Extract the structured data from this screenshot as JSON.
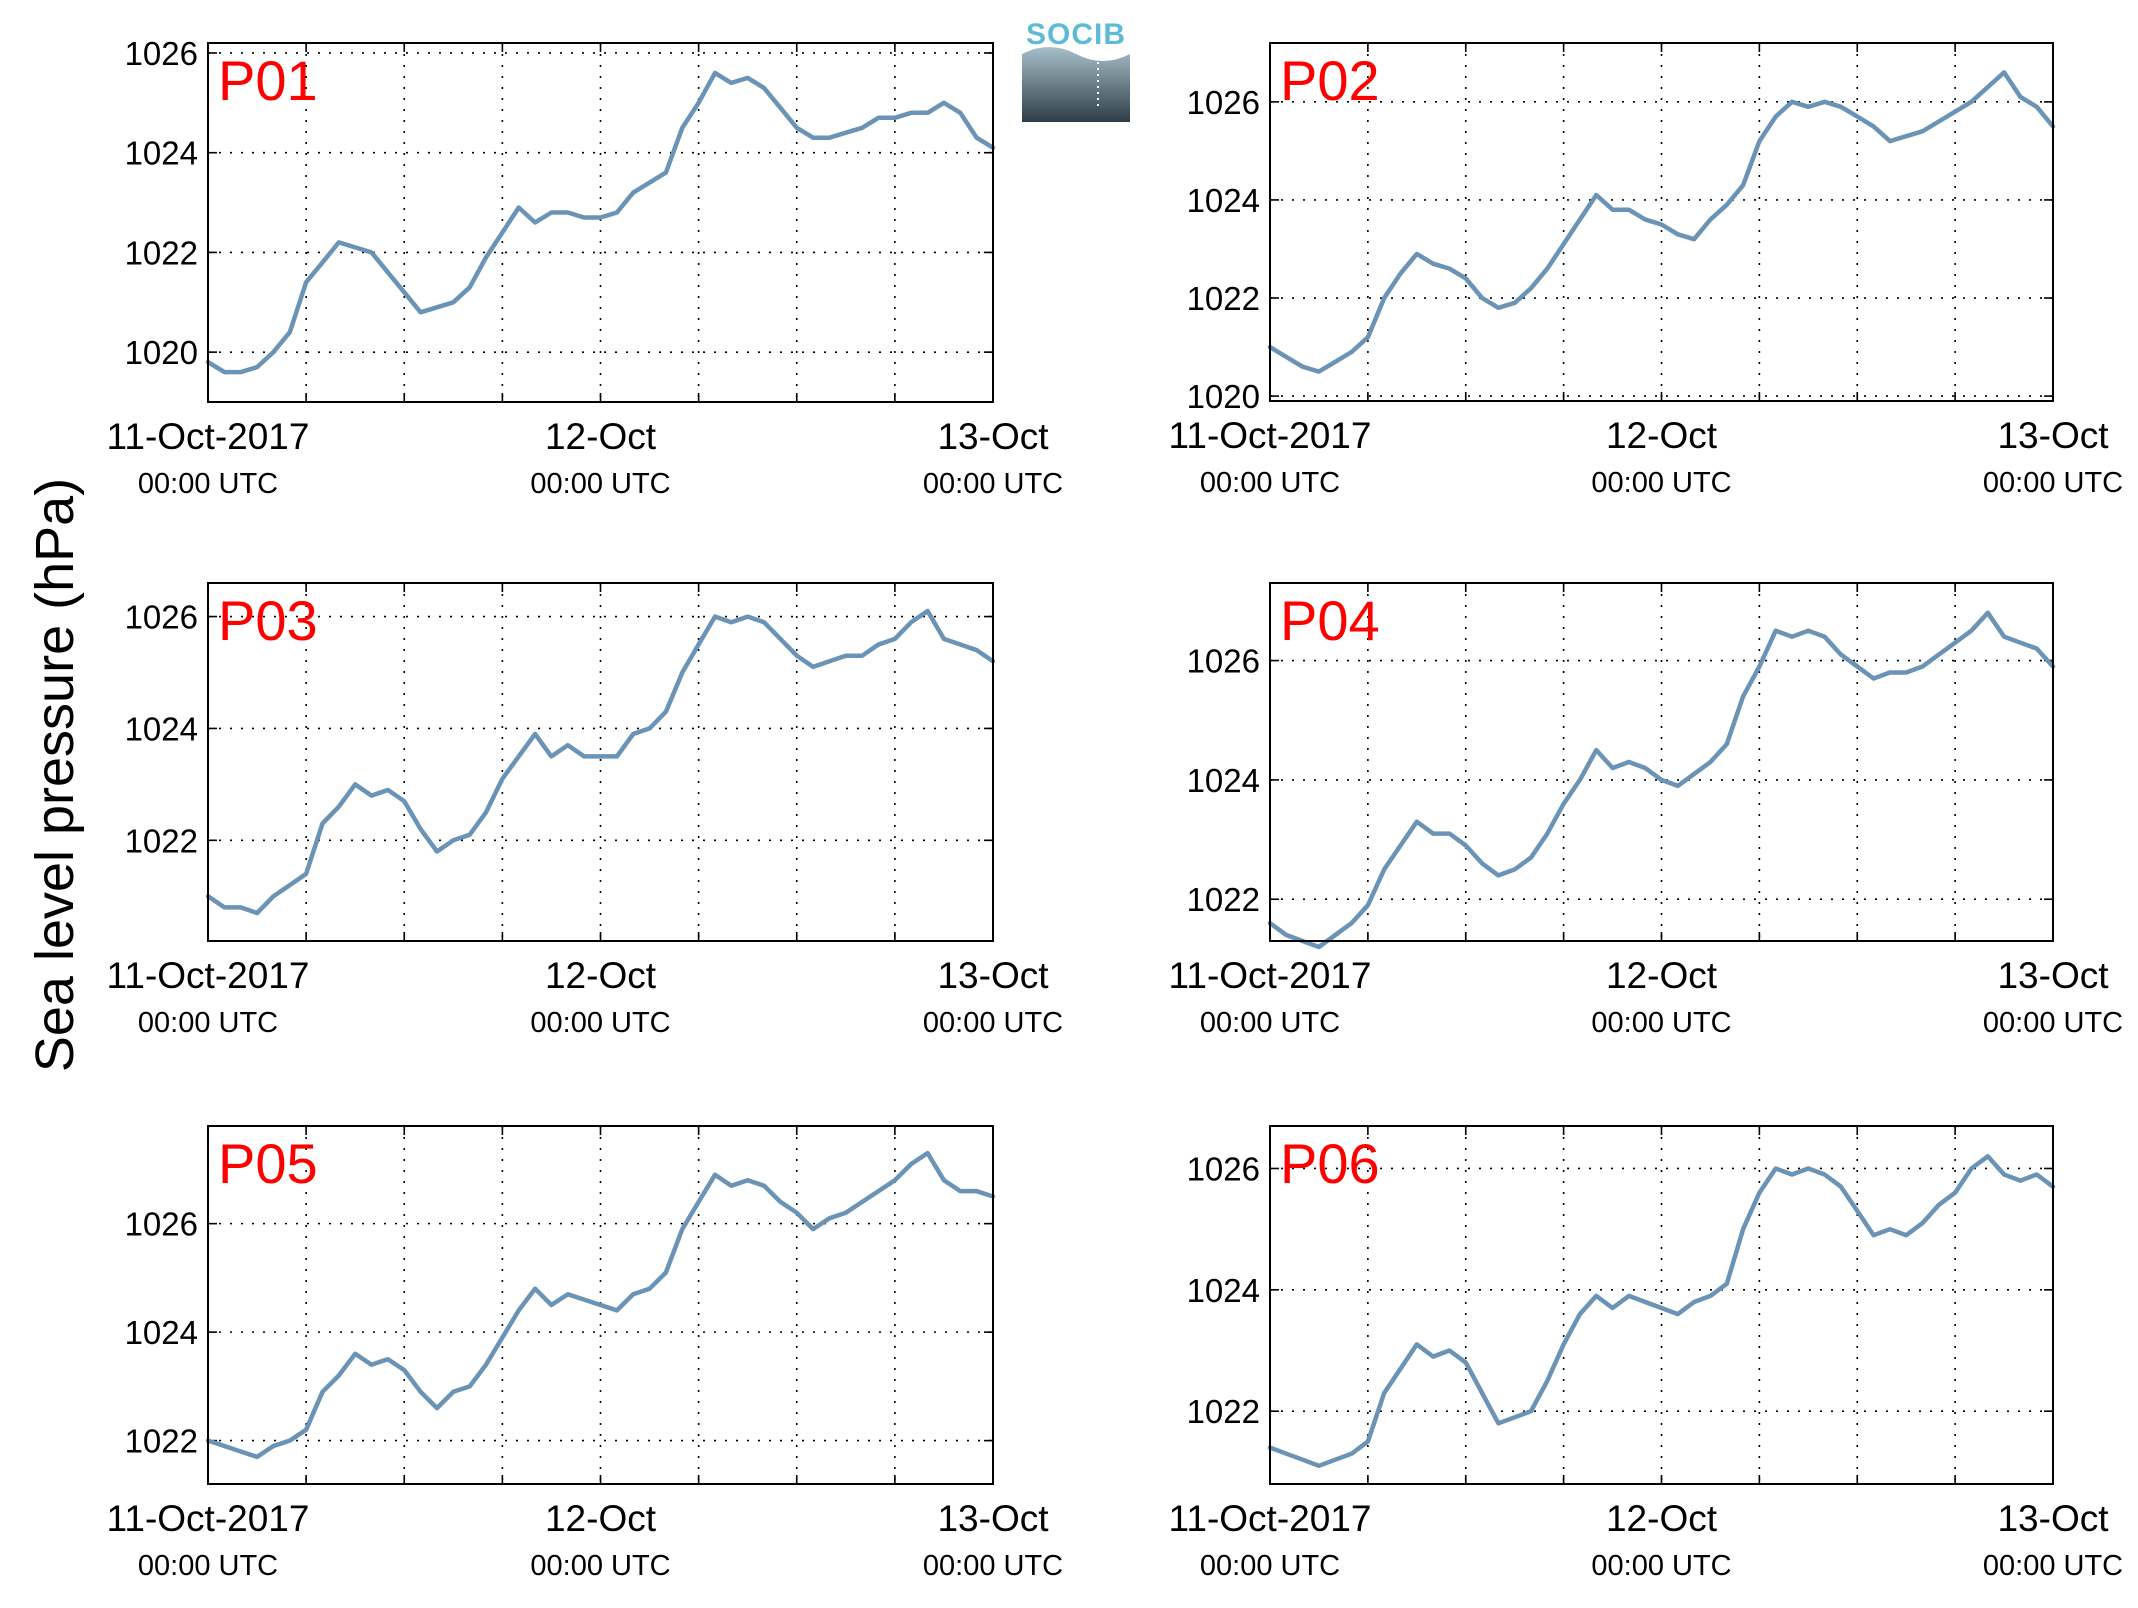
{
  "figure": {
    "ylabel": "Sea level pressure (hPa)",
    "logo_text": "SOCIB",
    "colors": {
      "line": "#6b93b5",
      "panel_label": "#ff0000",
      "grid": "#000000",
      "logo_text": "#5dbbd3",
      "logo_top": "#a7bfc9",
      "logo_bottom": "#2e3d47"
    }
  },
  "chart_data": [
    {
      "type": "line",
      "panel_label": "P01",
      "xlim": [
        0,
        48
      ],
      "ylim": [
        1019,
        1026.2
      ],
      "yticks": [
        1020,
        1022,
        1024,
        1026
      ],
      "xticks": [
        {
          "hour": 0,
          "date": "11-Oct-2017",
          "time": "00:00 UTC"
        },
        {
          "hour": 24,
          "date": "12-Oct",
          "time": "00:00 UTC"
        },
        {
          "hour": 48,
          "date": "13-Oct",
          "time": "00:00 UTC"
        }
      ],
      "series": [
        {
          "x": [
            0,
            1,
            2,
            3,
            4,
            5,
            6,
            7,
            8,
            9,
            10,
            11,
            12,
            13,
            14,
            15,
            16,
            17,
            18,
            19,
            20,
            21,
            22,
            23,
            24,
            25,
            26,
            27,
            28,
            29,
            30,
            31,
            32,
            33,
            34,
            35,
            36,
            37,
            38,
            39,
            40,
            41,
            42,
            43,
            44,
            45,
            46,
            47,
            48
          ],
          "y": [
            1019.8,
            1019.6,
            1019.6,
            1019.7,
            1020.0,
            1020.4,
            1021.4,
            1021.8,
            1022.2,
            1022.1,
            1022.0,
            1021.6,
            1021.2,
            1020.8,
            1020.9,
            1021.0,
            1021.3,
            1021.9,
            1022.4,
            1022.9,
            1022.6,
            1022.8,
            1022.8,
            1022.7,
            1022.7,
            1022.8,
            1023.2,
            1023.4,
            1023.6,
            1024.5,
            1025.0,
            1025.6,
            1025.4,
            1025.5,
            1025.3,
            1024.9,
            1024.5,
            1024.3,
            1024.3,
            1024.4,
            1024.5,
            1024.7,
            1024.7,
            1024.8,
            1024.8,
            1025.0,
            1024.8,
            1024.3,
            1024.1
          ]
        }
      ]
    },
    {
      "type": "line",
      "panel_label": "P02",
      "xlim": [
        0,
        48
      ],
      "ylim": [
        1019.9,
        1027.2
      ],
      "yticks": [
        1020,
        1022,
        1024,
        1026
      ],
      "xticks": [
        {
          "hour": 0,
          "date": "11-Oct-2017",
          "time": "00:00 UTC"
        },
        {
          "hour": 24,
          "date": "12-Oct",
          "time": "00:00 UTC"
        },
        {
          "hour": 48,
          "date": "13-Oct",
          "time": "00:00 UTC"
        }
      ],
      "series": [
        {
          "x": [
            0,
            1,
            2,
            3,
            4,
            5,
            6,
            7,
            8,
            9,
            10,
            11,
            12,
            13,
            14,
            15,
            16,
            17,
            18,
            19,
            20,
            21,
            22,
            23,
            24,
            25,
            26,
            27,
            28,
            29,
            30,
            31,
            32,
            33,
            34,
            35,
            36,
            37,
            38,
            39,
            40,
            41,
            42,
            43,
            44,
            45,
            46,
            47,
            48
          ],
          "y": [
            1021.0,
            1020.8,
            1020.6,
            1020.5,
            1020.7,
            1020.9,
            1021.2,
            1022.0,
            1022.5,
            1022.9,
            1022.7,
            1022.6,
            1022.4,
            1022.0,
            1021.8,
            1021.9,
            1022.2,
            1022.6,
            1023.1,
            1023.6,
            1024.1,
            1023.8,
            1023.8,
            1023.6,
            1023.5,
            1023.3,
            1023.2,
            1023.6,
            1023.9,
            1024.3,
            1025.2,
            1025.7,
            1026.0,
            1025.9,
            1026.0,
            1025.9,
            1025.7,
            1025.5,
            1025.2,
            1025.3,
            1025.4,
            1025.6,
            1025.8,
            1026.0,
            1026.3,
            1026.6,
            1026.1,
            1025.9,
            1025.5
          ]
        }
      ]
    },
    {
      "type": "line",
      "panel_label": "P03",
      "xlim": [
        0,
        48
      ],
      "ylim": [
        1020.2,
        1026.6
      ],
      "yticks": [
        1022,
        1024,
        1026
      ],
      "xticks": [
        {
          "hour": 0,
          "date": "11-Oct-2017",
          "time": "00:00 UTC"
        },
        {
          "hour": 24,
          "date": "12-Oct",
          "time": "00:00 UTC"
        },
        {
          "hour": 48,
          "date": "13-Oct",
          "time": "00:00 UTC"
        }
      ],
      "series": [
        {
          "x": [
            0,
            1,
            2,
            3,
            4,
            5,
            6,
            7,
            8,
            9,
            10,
            11,
            12,
            13,
            14,
            15,
            16,
            17,
            18,
            19,
            20,
            21,
            22,
            23,
            24,
            25,
            26,
            27,
            28,
            29,
            30,
            31,
            32,
            33,
            34,
            35,
            36,
            37,
            38,
            39,
            40,
            41,
            42,
            43,
            44,
            45,
            46,
            47,
            48
          ],
          "y": [
            1021.0,
            1020.8,
            1020.8,
            1020.7,
            1021.0,
            1021.2,
            1021.4,
            1022.3,
            1022.6,
            1023.0,
            1022.8,
            1022.9,
            1022.7,
            1022.2,
            1021.8,
            1022.0,
            1022.1,
            1022.5,
            1023.1,
            1023.5,
            1023.9,
            1023.5,
            1023.7,
            1023.5,
            1023.5,
            1023.5,
            1023.9,
            1024.0,
            1024.3,
            1025.0,
            1025.5,
            1026.0,
            1025.9,
            1026.0,
            1025.9,
            1025.6,
            1025.3,
            1025.1,
            1025.2,
            1025.3,
            1025.3,
            1025.5,
            1025.6,
            1025.9,
            1026.1,
            1025.6,
            1025.5,
            1025.4,
            1025.2
          ]
        }
      ]
    },
    {
      "type": "line",
      "panel_label": "P04",
      "xlim": [
        0,
        48
      ],
      "ylim": [
        1021.3,
        1027.3
      ],
      "yticks": [
        1022,
        1024,
        1026
      ],
      "xticks": [
        {
          "hour": 0,
          "date": "11-Oct-2017",
          "time": "00:00 UTC"
        },
        {
          "hour": 24,
          "date": "12-Oct",
          "time": "00:00 UTC"
        },
        {
          "hour": 48,
          "date": "13-Oct",
          "time": "00:00 UTC"
        }
      ],
      "series": [
        {
          "x": [
            0,
            1,
            2,
            3,
            4,
            5,
            6,
            7,
            8,
            9,
            10,
            11,
            12,
            13,
            14,
            15,
            16,
            17,
            18,
            19,
            20,
            21,
            22,
            23,
            24,
            25,
            26,
            27,
            28,
            29,
            30,
            31,
            32,
            33,
            34,
            35,
            36,
            37,
            38,
            39,
            40,
            41,
            42,
            43,
            44,
            45,
            46,
            47,
            48
          ],
          "y": [
            1021.6,
            1021.4,
            1021.3,
            1021.2,
            1021.4,
            1021.6,
            1021.9,
            1022.5,
            1022.9,
            1023.3,
            1023.1,
            1023.1,
            1022.9,
            1022.6,
            1022.4,
            1022.5,
            1022.7,
            1023.1,
            1023.6,
            1024.0,
            1024.5,
            1024.2,
            1024.3,
            1024.2,
            1024.0,
            1023.9,
            1024.1,
            1024.3,
            1024.6,
            1025.4,
            1025.9,
            1026.5,
            1026.4,
            1026.5,
            1026.4,
            1026.1,
            1025.9,
            1025.7,
            1025.8,
            1025.8,
            1025.9,
            1026.1,
            1026.3,
            1026.5,
            1026.8,
            1026.4,
            1026.3,
            1026.2,
            1025.9
          ]
        }
      ]
    },
    {
      "type": "line",
      "panel_label": "P05",
      "xlim": [
        0,
        48
      ],
      "ylim": [
        1021.2,
        1027.8
      ],
      "yticks": [
        1022,
        1024,
        1026
      ],
      "xticks": [
        {
          "hour": 0,
          "date": "11-Oct-2017",
          "time": "00:00 UTC"
        },
        {
          "hour": 24,
          "date": "12-Oct",
          "time": "00:00 UTC"
        },
        {
          "hour": 48,
          "date": "13-Oct",
          "time": "00:00 UTC"
        }
      ],
      "series": [
        {
          "x": [
            0,
            1,
            2,
            3,
            4,
            5,
            6,
            7,
            8,
            9,
            10,
            11,
            12,
            13,
            14,
            15,
            16,
            17,
            18,
            19,
            20,
            21,
            22,
            23,
            24,
            25,
            26,
            27,
            28,
            29,
            30,
            31,
            32,
            33,
            34,
            35,
            36,
            37,
            38,
            39,
            40,
            41,
            42,
            43,
            44,
            45,
            46,
            47,
            48
          ],
          "y": [
            1022.0,
            1021.9,
            1021.8,
            1021.7,
            1021.9,
            1022.0,
            1022.2,
            1022.9,
            1023.2,
            1023.6,
            1023.4,
            1023.5,
            1023.3,
            1022.9,
            1022.6,
            1022.9,
            1023.0,
            1023.4,
            1023.9,
            1024.4,
            1024.8,
            1024.5,
            1024.7,
            1024.6,
            1024.5,
            1024.4,
            1024.7,
            1024.8,
            1025.1,
            1025.9,
            1026.4,
            1026.9,
            1026.7,
            1026.8,
            1026.7,
            1026.4,
            1026.2,
            1025.9,
            1026.1,
            1026.2,
            1026.4,
            1026.6,
            1026.8,
            1027.1,
            1027.3,
            1026.8,
            1026.6,
            1026.6,
            1026.5
          ]
        }
      ]
    },
    {
      "type": "line",
      "panel_label": "P06",
      "xlim": [
        0,
        48
      ],
      "ylim": [
        1020.8,
        1026.7
      ],
      "yticks": [
        1022,
        1024,
        1026
      ],
      "xticks": [
        {
          "hour": 0,
          "date": "11-Oct-2017",
          "time": "00:00 UTC"
        },
        {
          "hour": 24,
          "date": "12-Oct",
          "time": "00:00 UTC"
        },
        {
          "hour": 48,
          "date": "13-Oct",
          "time": "00:00 UTC"
        }
      ],
      "series": [
        {
          "x": [
            0,
            1,
            2,
            3,
            4,
            5,
            6,
            7,
            8,
            9,
            10,
            11,
            12,
            13,
            14,
            15,
            16,
            17,
            18,
            19,
            20,
            21,
            22,
            23,
            24,
            25,
            26,
            27,
            28,
            29,
            30,
            31,
            32,
            33,
            34,
            35,
            36,
            37,
            38,
            39,
            40,
            41,
            42,
            43,
            44,
            45,
            46,
            47,
            48
          ],
          "y": [
            1021.4,
            1021.3,
            1021.2,
            1021.1,
            1021.2,
            1021.3,
            1021.5,
            1022.3,
            1022.7,
            1023.1,
            1022.9,
            1023.0,
            1022.8,
            1022.3,
            1021.8,
            1021.9,
            1022.0,
            1022.5,
            1023.1,
            1023.6,
            1023.9,
            1023.7,
            1023.9,
            1023.8,
            1023.7,
            1023.6,
            1023.8,
            1023.9,
            1024.1,
            1025.0,
            1025.6,
            1026.0,
            1025.9,
            1026.0,
            1025.9,
            1025.7,
            1025.3,
            1024.9,
            1025.0,
            1024.9,
            1025.1,
            1025.4,
            1025.6,
            1026.0,
            1026.2,
            1025.9,
            1025.8,
            1025.9,
            1025.7
          ]
        }
      ]
    }
  ]
}
